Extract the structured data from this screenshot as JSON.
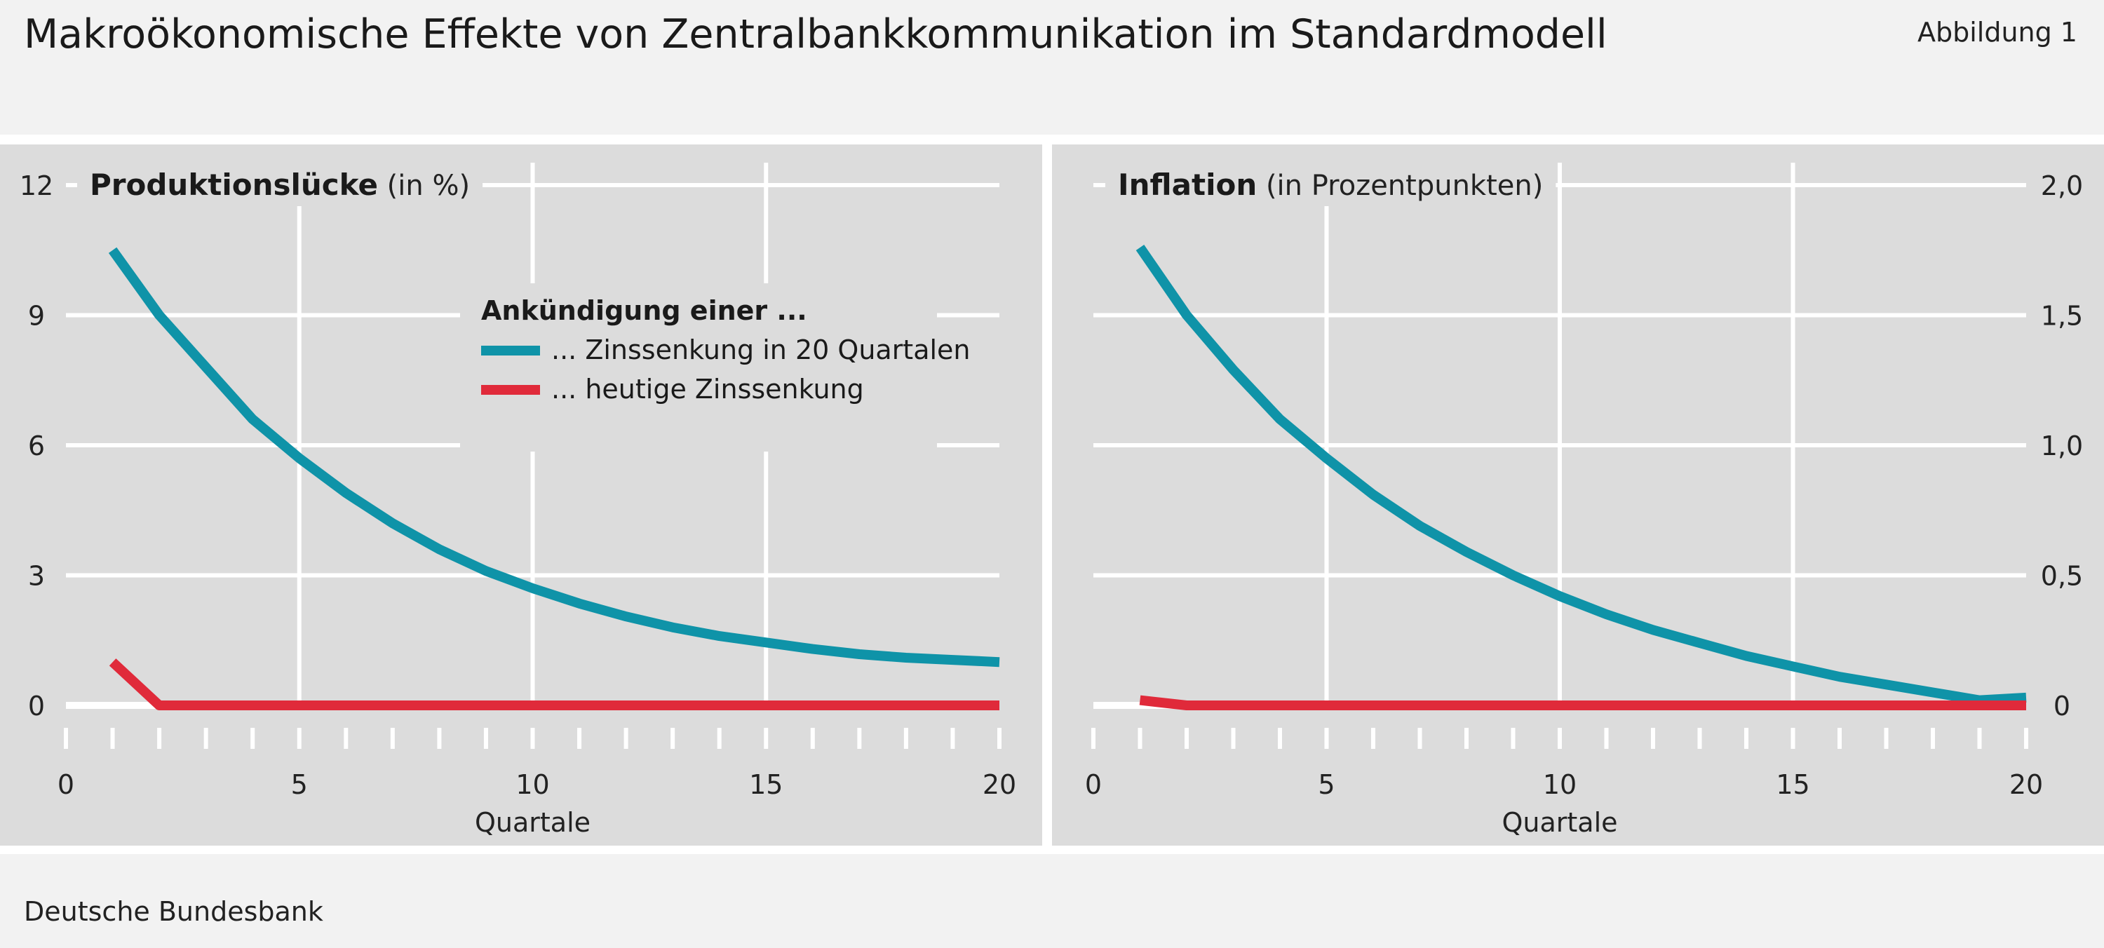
{
  "figure": {
    "title": "Makroökonomische Effekte von Zentralbankkommunikation im Standardmodell",
    "figure_number": "Abbildung 1",
    "source": "Deutsche Bundesbank"
  },
  "colors": {
    "forward_guidance": "#0f93a8",
    "current_cut": "#e02a3a",
    "panel_bg": "#dcdcdc",
    "grid": "#ffffff"
  },
  "chart_data": [
    {
      "type": "line",
      "title": "Produktionslücke",
      "unit": "(in %)",
      "xlabel": "Quartale",
      "ylabel": "",
      "xlim": [
        0,
        20
      ],
      "ylim": [
        0,
        12
      ],
      "xticks": [
        0,
        5,
        10,
        15,
        20
      ],
      "yticks": [
        0,
        3,
        6,
        9,
        12
      ],
      "ytick_labels": [
        "0",
        "3",
        "6",
        "9",
        "12"
      ],
      "y_axis_side": "left",
      "grid": true,
      "legend": {
        "title": "Ankündigung einer ...",
        "placement": "center"
      },
      "x": [
        1,
        2,
        3,
        4,
        5,
        6,
        7,
        8,
        9,
        10,
        11,
        12,
        13,
        14,
        15,
        16,
        17,
        18,
        19,
        20
      ],
      "series": [
        {
          "name": "... Zinssenkung in 20 Quartalen",
          "color": "#0f93a8",
          "values": [
            10.5,
            9.0,
            7.8,
            6.6,
            5.7,
            4.9,
            4.2,
            3.6,
            3.1,
            2.7,
            2.35,
            2.05,
            1.8,
            1.6,
            1.45,
            1.3,
            1.18,
            1.1,
            1.05,
            1.0
          ]
        },
        {
          "name": "... heutige Zinssenkung",
          "color": "#e02a3a",
          "values": [
            1.0,
            0,
            0,
            0,
            0,
            0,
            0,
            0,
            0,
            0,
            0,
            0,
            0,
            0,
            0,
            0,
            0,
            0,
            0,
            0
          ]
        }
      ]
    },
    {
      "type": "line",
      "title": "Inflation",
      "unit": "(in Prozentpunkten)",
      "xlabel": "Quartale",
      "ylabel": "",
      "xlim": [
        0,
        20
      ],
      "ylim": [
        0,
        2.0
      ],
      "xticks": [
        0,
        5,
        10,
        15,
        20
      ],
      "yticks": [
        0,
        0.5,
        1.0,
        1.5,
        2.0
      ],
      "ytick_labels": [
        "0",
        "0,5",
        "1,0",
        "1,5",
        "2,0"
      ],
      "y_axis_side": "right",
      "grid": true,
      "x": [
        1,
        2,
        3,
        4,
        5,
        6,
        7,
        8,
        9,
        10,
        11,
        12,
        13,
        14,
        15,
        16,
        17,
        18,
        19,
        20
      ],
      "series": [
        {
          "color": "#0f93a8",
          "values": [
            1.76,
            1.5,
            1.29,
            1.1,
            0.95,
            0.81,
            0.69,
            0.59,
            0.5,
            0.42,
            0.35,
            0.29,
            0.24,
            0.19,
            0.15,
            0.11,
            0.08,
            0.05,
            0.02,
            0.03
          ]
        },
        {
          "color": "#e02a3a",
          "values": [
            0.02,
            0,
            0,
            0,
            0,
            0,
            0,
            0,
            0,
            0,
            0,
            0,
            0,
            0,
            0,
            0,
            0,
            0,
            0,
            0
          ]
        }
      ]
    }
  ]
}
